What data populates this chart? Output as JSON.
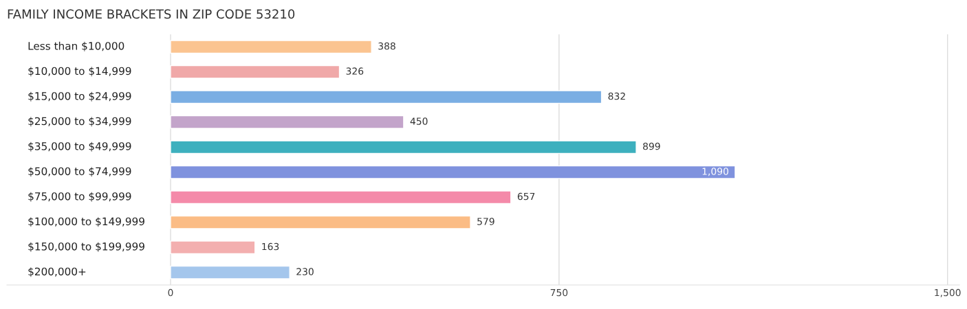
{
  "chart_data": {
    "type": "bar",
    "orientation": "horizontal",
    "title": "FAMILY INCOME BRACKETS IN ZIP CODE 53210",
    "categories": [
      "Less than $10,000",
      "$10,000 to $14,999",
      "$15,000 to $24,999",
      "$25,000 to $34,999",
      "$35,000 to $49,999",
      "$50,000 to $74,999",
      "$75,000 to $99,999",
      "$100,000 to $149,999",
      "$150,000 to $199,999",
      "$200,000+"
    ],
    "values": [
      388,
      326,
      832,
      450,
      899,
      1090,
      657,
      579,
      163,
      230
    ],
    "value_labels": [
      "388",
      "326",
      "832",
      "450",
      "899",
      "1,090",
      "657",
      "579",
      "163",
      "230"
    ],
    "colors": [
      "#fbc490",
      "#f0a8a8",
      "#7aaee3",
      "#c3a4ca",
      "#3db0be",
      "#7f92de",
      "#f48aa9",
      "#fbbc85",
      "#f3afaf",
      "#a4c6ec"
    ],
    "xlim": [
      -316,
      1523
    ],
    "xticks": [
      0,
      750,
      {
        "value": 1500,
        "label": "1,500"
      }
    ],
    "grid": "x",
    "legend": false
  }
}
